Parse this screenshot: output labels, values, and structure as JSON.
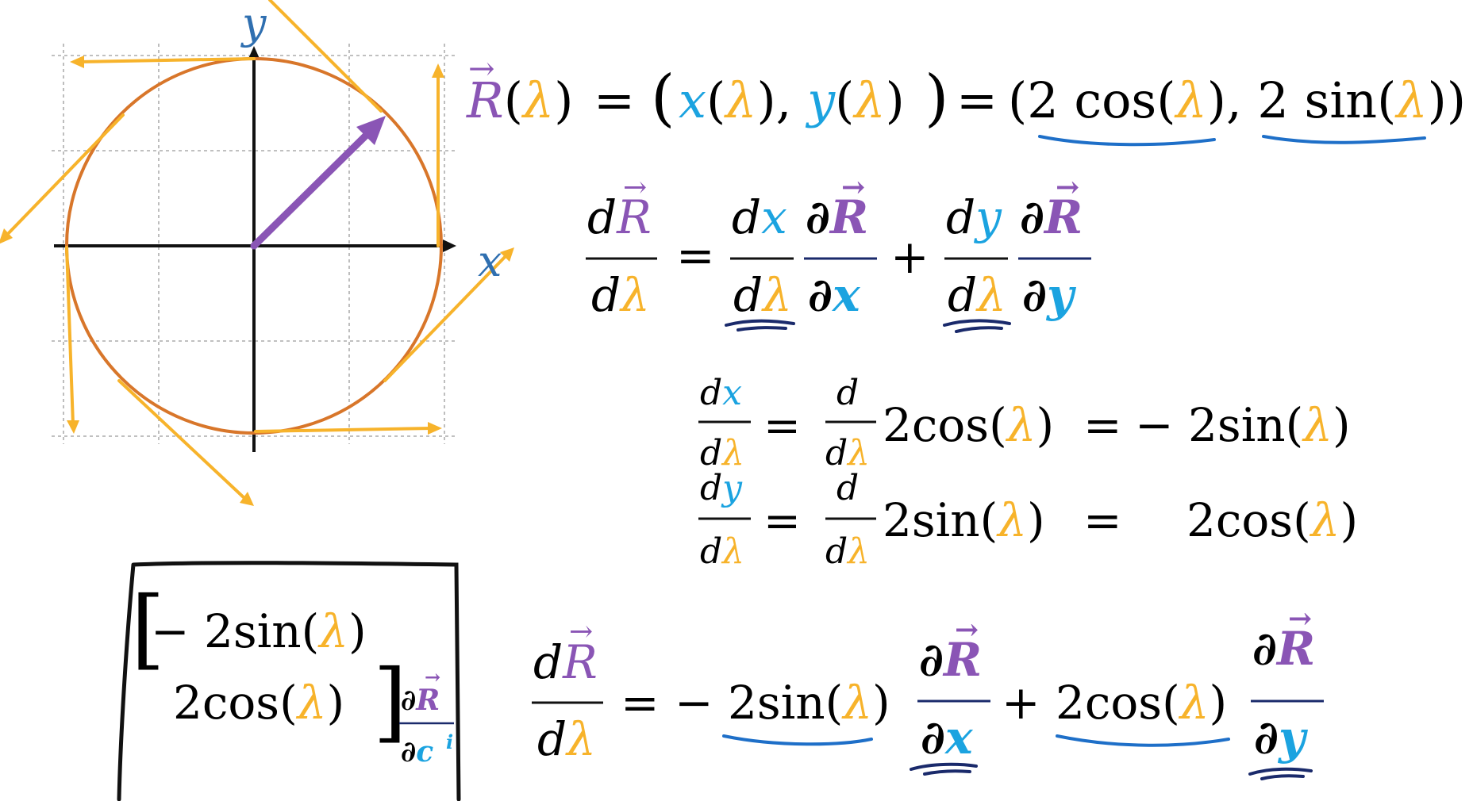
{
  "colors": {
    "purple": "#8A55B5",
    "blue": "#1BA3E0",
    "yellow": "#F7B32B",
    "orange": "#D8762A",
    "ink": "#111111",
    "pen": "#1E6FC8",
    "navy": "#1a2a6b"
  },
  "diagram": {
    "x_axis_label": "x",
    "y_axis_label": "y"
  },
  "glyphs": {
    "R": "R",
    "lambda": "λ",
    "x": "x",
    "y": "y",
    "d": "d",
    "partial": "∂",
    "arrow": "→",
    "c": "c",
    "i": "i"
  },
  "text": {
    "eq": "=",
    "plus": "+",
    "minus": "−",
    "lp": "(",
    "rp": ")",
    "comma": ",",
    "two_cos": "2 cos",
    "two_sin": "2 sin",
    "two_cos_tight": "2cos",
    "two_sin_tight": "2sin",
    "neg_two_sin": "− 2sin",
    "lbracket": "[",
    "rbracket": "]"
  }
}
